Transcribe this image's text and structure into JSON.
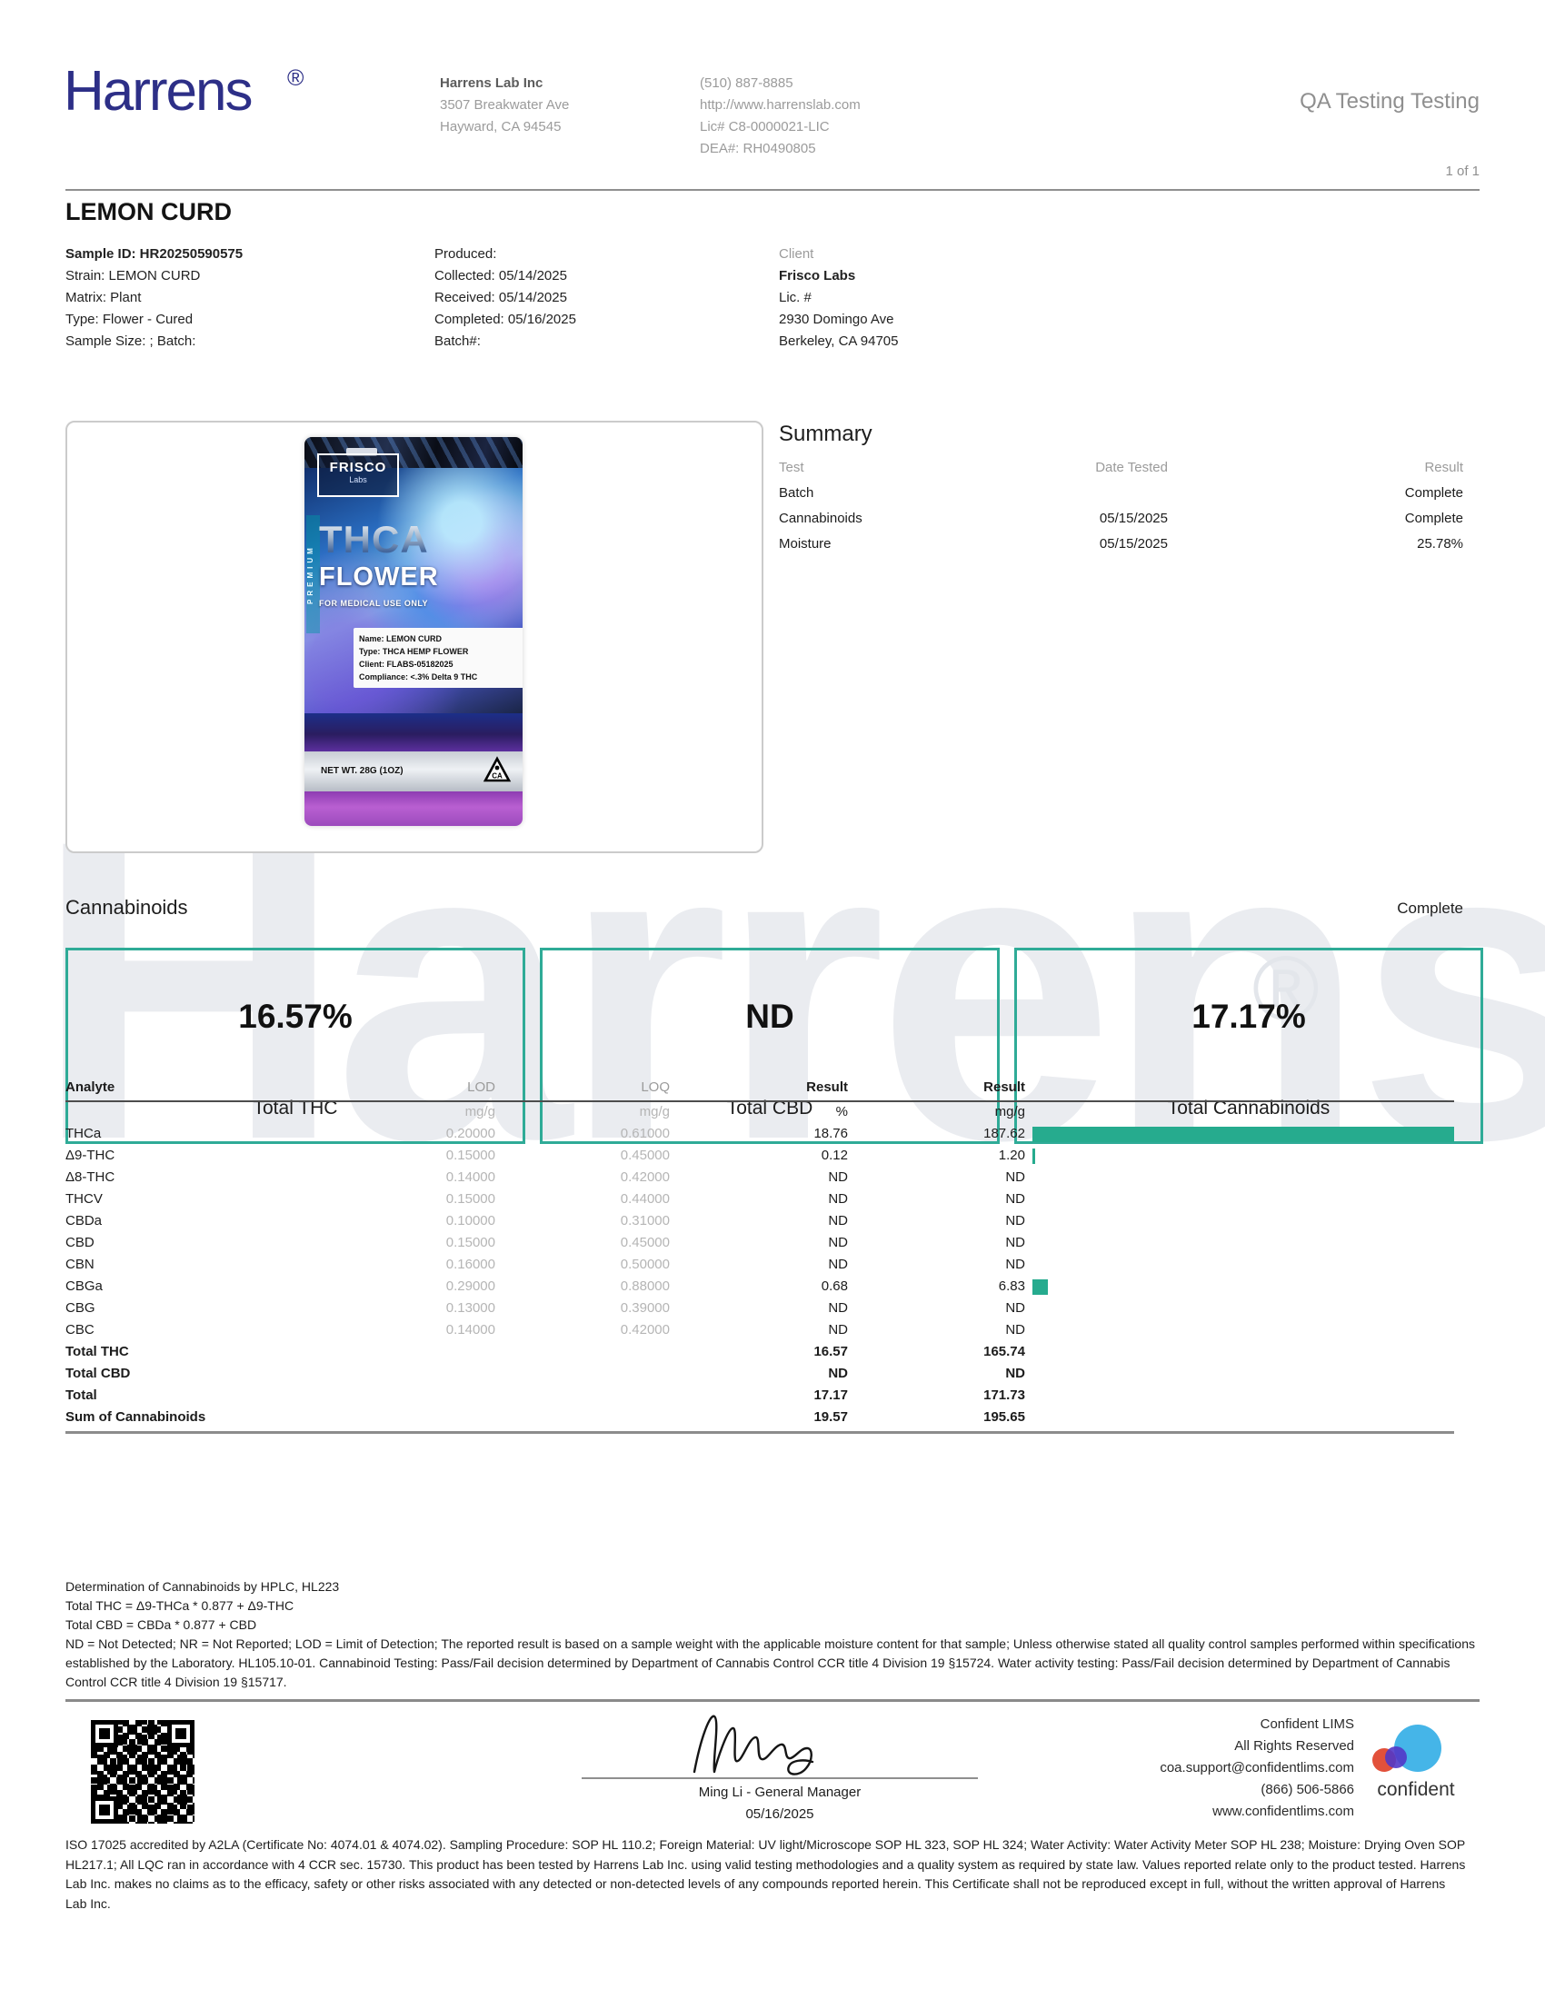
{
  "header": {
    "brand": "Harrens",
    "reg": "®",
    "lab_name": "Harrens Lab Inc",
    "address_line1": "3507 Breakwater Ave",
    "address_line2": "Hayward, CA 94545",
    "phone": "(510) 887-8885",
    "website": "http://www.harrenslab.com",
    "license": "Lic# C8-0000021-LIC",
    "dea": "DEA#: RH0490805",
    "report_type": "QA Testing Testing",
    "page_indicator": "1 of 1"
  },
  "sample": {
    "title": "LEMON CURD",
    "details_col1": [
      "Sample ID: HR20250590575",
      "Strain: LEMON CURD",
      "Matrix: Plant",
      "Type: Flower - Cured",
      "Sample Size: ; Batch:"
    ],
    "details_col2": [
      "Produced:",
      "Collected: 05/14/2025",
      "Received: 05/14/2025",
      "Completed: 05/16/2025",
      "Batch#:"
    ],
    "client": {
      "label": "Client",
      "name": "Frisco Labs",
      "license": "Lic. #",
      "address1": "2930 Domingo Ave",
      "address2": "Berkeley, CA 94705"
    }
  },
  "package": {
    "brand": "FRISCO",
    "brand_sub": "Labs",
    "side_text": "PREMIUM",
    "product_line1": "THCA",
    "product_line2": "FLOWER",
    "medical": "FOR MEDICAL USE ONLY",
    "label_line1": "Name: LEMON CURD",
    "label_line2": "Type: THCA HEMP FLOWER",
    "label_line3": "Client: FLABS-05182025",
    "label_line4": "Compliance: <.3% Delta 9 THC",
    "net_wt": "NET WT. 28G (1OZ)",
    "ca_mark": "CA"
  },
  "summary": {
    "title": "Summary",
    "headers": [
      "Test",
      "Date Tested",
      "Result"
    ],
    "rows": [
      {
        "test": "Batch",
        "date": "",
        "result": "Complete"
      },
      {
        "test": "Cannabinoids",
        "date": "05/15/2025",
        "result": "Complete"
      },
      {
        "test": "Moisture",
        "date": "05/15/2025",
        "result": "25.78%"
      }
    ]
  },
  "cannabinoids": {
    "heading": "Cannabinoids",
    "status": "Complete",
    "boxes": [
      {
        "value": "16.57%",
        "label": "Total THC"
      },
      {
        "value": "ND",
        "label": "Total CBD"
      },
      {
        "value": "17.17%",
        "label": "Total Cannabinoids"
      }
    ]
  },
  "analytes": {
    "headers": {
      "analyte": "Analyte",
      "lod": "LOD",
      "loq": "LOQ",
      "result_pct": "Result",
      "result_mgg": "Result"
    },
    "units": {
      "lod": "mg/g",
      "loq": "mg/g",
      "result_pct": "%",
      "result_mgg": "mg/g"
    },
    "bar_max": 187.62,
    "bar_color": "#26ab8e",
    "rows": [
      {
        "name": "THCa",
        "lod": "0.20000",
        "loq": "0.61000",
        "pct": "18.76",
        "mgg": "187.62",
        "bar": 187.62,
        "bold": false
      },
      {
        "name": "Δ9-THC",
        "lod": "0.15000",
        "loq": "0.45000",
        "pct": "0.12",
        "mgg": "1.20",
        "bar": 1.2,
        "bold": false
      },
      {
        "name": "Δ8-THC",
        "lod": "0.14000",
        "loq": "0.42000",
        "pct": "ND",
        "mgg": "ND",
        "bar": 0,
        "bold": false
      },
      {
        "name": "THCV",
        "lod": "0.15000",
        "loq": "0.44000",
        "pct": "ND",
        "mgg": "ND",
        "bar": 0,
        "bold": false
      },
      {
        "name": "CBDa",
        "lod": "0.10000",
        "loq": "0.31000",
        "pct": "ND",
        "mgg": "ND",
        "bar": 0,
        "bold": false
      },
      {
        "name": "CBD",
        "lod": "0.15000",
        "loq": "0.45000",
        "pct": "ND",
        "mgg": "ND",
        "bar": 0,
        "bold": false
      },
      {
        "name": "CBN",
        "lod": "0.16000",
        "loq": "0.50000",
        "pct": "ND",
        "mgg": "ND",
        "bar": 0,
        "bold": false
      },
      {
        "name": "CBGa",
        "lod": "0.29000",
        "loq": "0.88000",
        "pct": "0.68",
        "mgg": "6.83",
        "bar": 6.83,
        "bold": false
      },
      {
        "name": "CBG",
        "lod": "0.13000",
        "loq": "0.39000",
        "pct": "ND",
        "mgg": "ND",
        "bar": 0,
        "bold": false
      },
      {
        "name": "CBC",
        "lod": "0.14000",
        "loq": "0.42000",
        "pct": "ND",
        "mgg": "ND",
        "bar": 0,
        "bold": false
      },
      {
        "name": "Total THC",
        "lod": "",
        "loq": "",
        "pct": "16.57",
        "mgg": "165.74",
        "bar": 0,
        "bold": true
      },
      {
        "name": "Total CBD",
        "lod": "",
        "loq": "",
        "pct": "ND",
        "mgg": "ND",
        "bar": 0,
        "bold": true
      },
      {
        "name": "Total",
        "lod": "",
        "loq": "",
        "pct": "17.17",
        "mgg": "171.73",
        "bar": 0,
        "bold": true
      },
      {
        "name": "Sum of Cannabinoids",
        "lod": "",
        "loq": "",
        "pct": "19.57",
        "mgg": "195.65",
        "bar": 0,
        "bold": true
      }
    ]
  },
  "footnotes": {
    "line1": "Determination of Cannabinoids by HPLC, HL223",
    "line2": "Total THC = Δ9-THCa * 0.877 + Δ9-THC",
    "line3": "Total CBD = CBDa * 0.877 + CBD",
    "paragraph": "ND = Not Detected; NR = Not Reported; LOD = Limit of Detection; The reported result is based on a sample weight with the applicable moisture content for that sample; Unless otherwise stated all quality control samples performed within specifications established by the Laboratory. HL105.10-01. Cannabinoid Testing: Pass/Fail decision determined by Department of Cannabis Control CCR title 4 Division 19 §15724. Water activity testing: Pass/Fail decision determined by Department of Cannabis Control CCR title 4 Division 19 §15717."
  },
  "signature": {
    "name_title": "Ming Li - General Manager",
    "date": "05/16/2025"
  },
  "lims": {
    "line1": "Confident LIMS",
    "line2": "All Rights Reserved",
    "email": "coa.support@confidentlims.com",
    "phone": "(866) 506-5866",
    "website": "www.confidentlims.com",
    "logo_text": "confident"
  },
  "legal": "ISO 17025 accredited by A2LA (Certificate No: 4074.01 & 4074.02). Sampling Procedure: SOP HL 110.2; Foreign Material: UV light/Microscope SOP HL 323, SOP HL 324; Water Activity: Water Activity Meter SOP HL 238; Moisture: Drying Oven SOP HL217.1; All LQC ran in accordance with 4 CCR sec. 15730. This product has been tested by Harrens Lab Inc. using valid testing methodologies and a quality system as required by state law. Values reported relate only to the product tested. Harrens Lab Inc. makes no claims as to the efficacy, safety or other risks associated with any detected or non-detected levels of any compounds reported herein. This Certificate shall not be reproduced except in full, without the written approval of Harrens Lab Inc.",
  "watermark": {
    "text": "Harrens",
    "reg": "®"
  },
  "colors": {
    "accent_teal": "#2fab97",
    "bar_teal": "#26ab8e",
    "navy": "#2d2f87"
  }
}
